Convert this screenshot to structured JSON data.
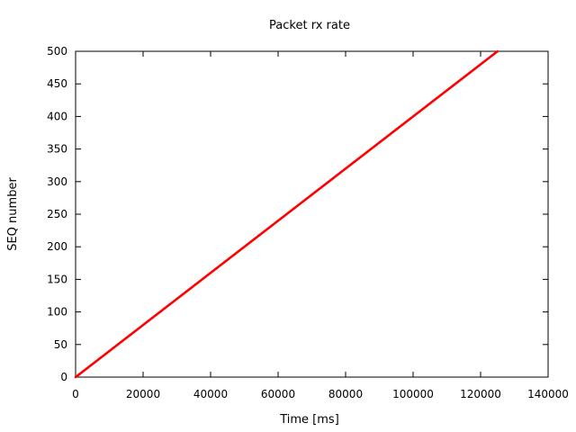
{
  "chart_data": {
    "type": "scatter",
    "title": "Packet rx rate",
    "xlabel": "Time [ms]",
    "ylabel": "SEQ number",
    "xlim": [
      0,
      140000
    ],
    "ylim": [
      0,
      500
    ],
    "xticks": [
      0,
      20000,
      40000,
      60000,
      80000,
      100000,
      120000,
      140000
    ],
    "yticks": [
      0,
      50,
      100,
      150,
      200,
      250,
      300,
      350,
      400,
      450,
      500
    ],
    "grid": false,
    "legend": "none",
    "series": [
      {
        "color": "#ff0000",
        "marker": "dot",
        "x_start": 0,
        "x_end": 125000,
        "y_start": 0,
        "y_end": 500,
        "point_count": 500
      }
    ]
  }
}
